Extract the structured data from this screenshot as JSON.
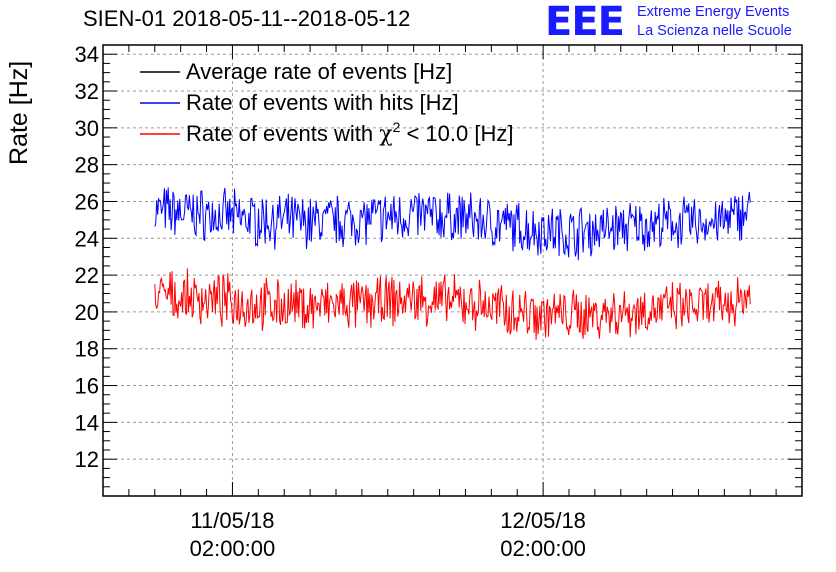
{
  "chart_data": {
    "type": "line",
    "title": "SIEN-01 2018-05-11--2018-05-12",
    "ylabel": "Rate [Hz]",
    "xlabel": "",
    "ylim": [
      10,
      34.5
    ],
    "y_ticks": [
      "12",
      "14",
      "16",
      "18",
      "20",
      "22",
      "24",
      "26",
      "28",
      "30",
      "32",
      "34"
    ],
    "x_ticks": [
      {
        "date": "11/05/18",
        "time": "02:00:00"
      },
      {
        "date": "12/05/18",
        "time": "02:00:00"
      }
    ],
    "x_range": [
      "2018-05-10 16:00:00",
      "2018-05-12 22:00:00"
    ],
    "grid": true,
    "legend_position": "top-left",
    "series": [
      {
        "name": "Average rate of events [Hz]",
        "color": "#000000",
        "values": []
      },
      {
        "name": "Rate of events with hits [Hz]",
        "color": "#0000ff",
        "x": [
          "2018-05-10 20:00",
          "2018-05-11 00:00",
          "2018-05-11 04:00",
          "2018-05-11 08:00",
          "2018-05-11 12:00",
          "2018-05-11 16:00",
          "2018-05-11 20:00",
          "2018-05-12 00:00",
          "2018-05-12 04:00",
          "2018-05-12 08:00",
          "2018-05-12 12:00",
          "2018-05-12 16:00",
          "2018-05-12 18:00"
        ],
        "values": [
          25.5,
          25.3,
          25.0,
          24.9,
          25.0,
          25.3,
          25.1,
          24.6,
          24.3,
          24.6,
          24.8,
          24.9,
          25.6
        ]
      },
      {
        "name": "Rate of events with χ2 < 10.0 [Hz]",
        "color": "#ff0000",
        "x": [
          "2018-05-10 20:00",
          "2018-05-11 00:00",
          "2018-05-11 04:00",
          "2018-05-11 08:00",
          "2018-05-11 12:00",
          "2018-05-11 16:00",
          "2018-05-11 20:00",
          "2018-05-12 00:00",
          "2018-05-12 04:00",
          "2018-05-12 08:00",
          "2018-05-12 12:00",
          "2018-05-12 16:00",
          "2018-05-12 18:00"
        ],
        "values": [
          20.9,
          20.7,
          20.4,
          20.3,
          20.4,
          20.7,
          20.5,
          20.0,
          19.8,
          20.0,
          20.2,
          20.3,
          21.0
        ]
      }
    ]
  },
  "logo": {
    "mark": "EEE",
    "line1": "Extreme Energy Events",
    "line2": "La Scienza nelle Scuole"
  },
  "legend_parts": {
    "chi_prefix": "Rate of events with ",
    "chi_symbol": "χ",
    "chi_sup": "2",
    "chi_suffix": " < 10.0 [Hz]"
  }
}
